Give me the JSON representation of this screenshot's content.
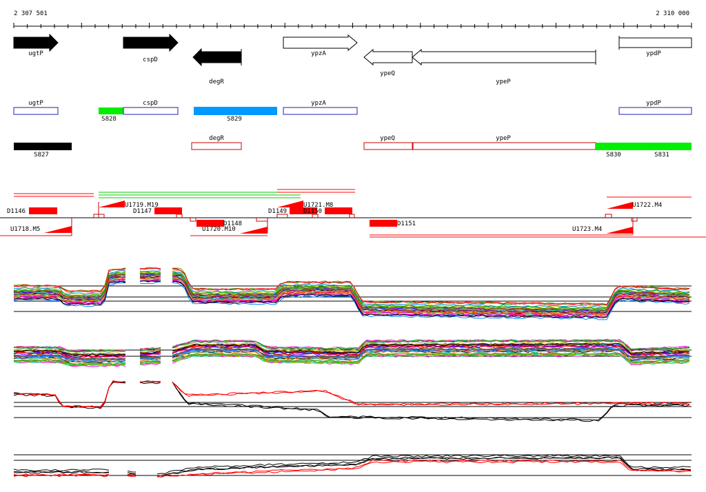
{
  "ruler": {
    "start_label": "2 307 501",
    "end_label": "2 310 000"
  },
  "genes_top": [
    {
      "name": "ugtP",
      "strand": "+",
      "fill": "black"
    },
    {
      "name": "cspD",
      "strand": "+",
      "fill": "black"
    },
    {
      "name": "degR",
      "strand": "-",
      "fill": "black"
    },
    {
      "name": "ypzA",
      "strand": "+",
      "fill": "white"
    },
    {
      "name": "ypeQ",
      "strand": "-",
      "fill": "white"
    },
    {
      "name": "ypeP",
      "strand": "-",
      "fill": "white"
    },
    {
      "name": "ypdP",
      "strand": "+",
      "fill": "white"
    }
  ],
  "segments_plus": [
    {
      "name": "ugtP",
      "kind": "gene"
    },
    {
      "name": "S828",
      "kind": "segment",
      "color": "#00ee00"
    },
    {
      "name": "cspD",
      "kind": "gene"
    },
    {
      "name": "S829",
      "kind": "segment",
      "color": "#0099ff"
    },
    {
      "name": "ypzA",
      "kind": "gene"
    },
    {
      "name": "ypdP",
      "kind": "gene"
    }
  ],
  "segments_minus": [
    {
      "name": "S827",
      "kind": "segment",
      "color": "#000000"
    },
    {
      "name": "degR",
      "kind": "gene"
    },
    {
      "name": "ypeQ",
      "kind": "gene"
    },
    {
      "name": "ypeP",
      "kind": "gene"
    },
    {
      "name": "S830",
      "kind": "segment",
      "color": "#00ee00"
    },
    {
      "name": "S831",
      "kind": "segment",
      "color": "#00ee00"
    }
  ],
  "features": {
    "d_labels": [
      "D1146",
      "D1147",
      "D1148",
      "D1149",
      "D1150",
      "D1151"
    ],
    "u_labels": [
      "U1718.M5",
      "U1719.M19",
      "U1720.M10",
      "U1721.M8",
      "U1722.M4",
      "U1723.M4"
    ]
  },
  "colors": {
    "gene_plus_outline": "#2222aa",
    "gene_minus_outline": "#cc0000",
    "feature_red": "#ff0000",
    "segment_green": "#00ee00",
    "segment_blue": "#0099ff"
  }
}
